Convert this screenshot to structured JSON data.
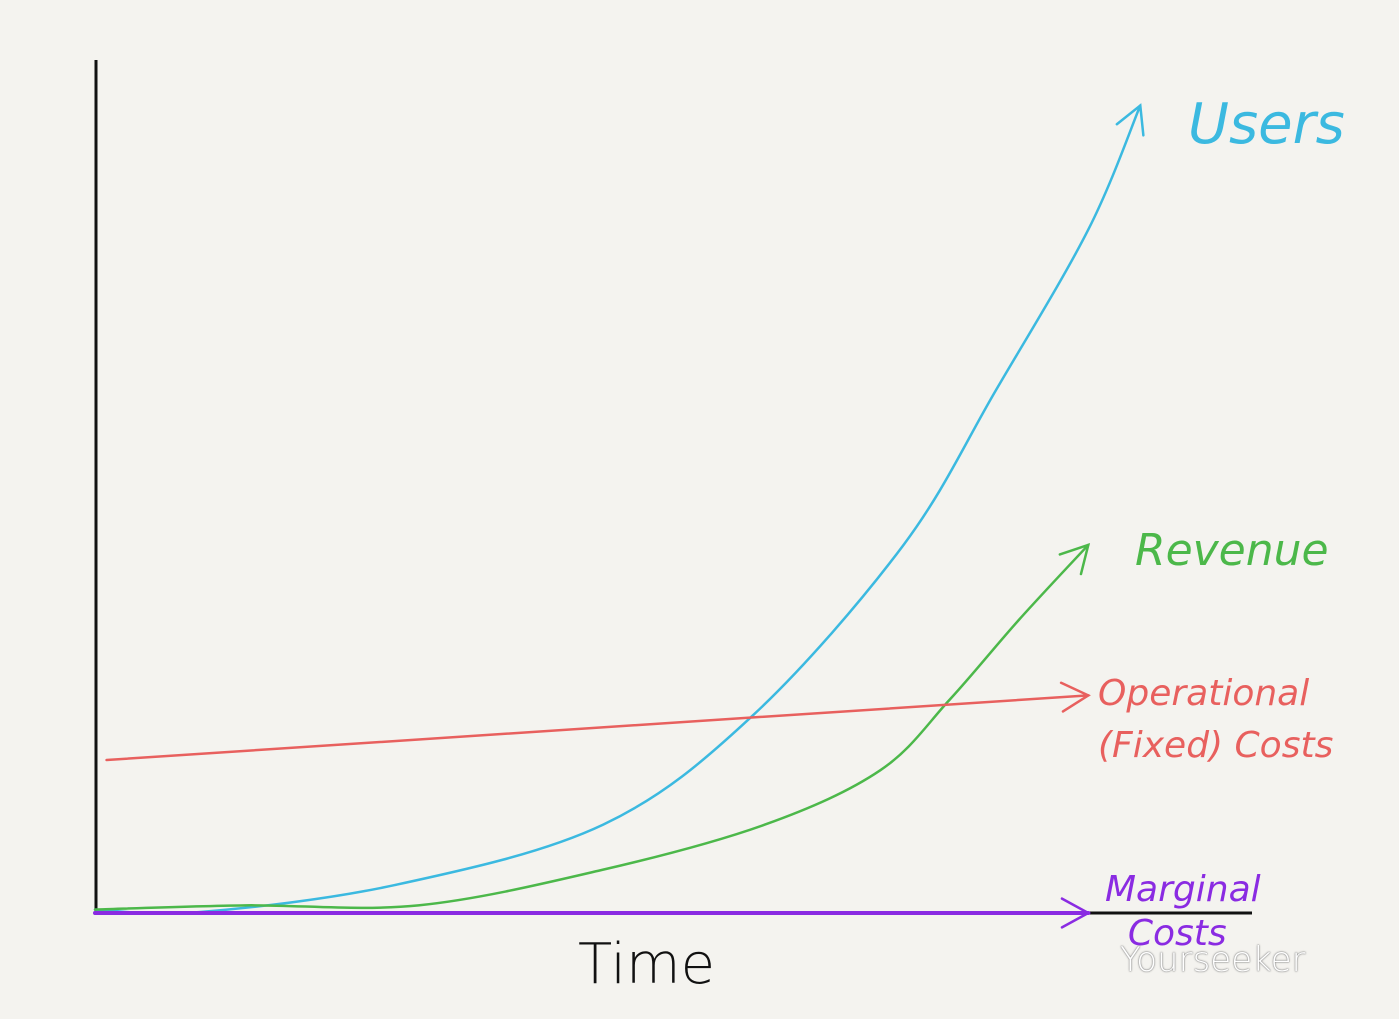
{
  "chart_data": {
    "type": "line",
    "title": "",
    "xlabel": "Time",
    "ylabel": "",
    "xlim": [
      0,
      10
    ],
    "ylim": [
      0,
      100
    ],
    "grid": false,
    "legend": "none (series labelled at line ends)",
    "series": [
      {
        "name": "Users",
        "color": "#3bb9e0",
        "x": [
          0,
          0.9,
          2.6,
          4.4,
          5.7,
          7.0,
          7.8,
          8.6,
          9.05
        ],
        "y": [
          0.4,
          0.1,
          3.3,
          10.4,
          23.3,
          43.3,
          61.5,
          80.4,
          95
        ]
      },
      {
        "name": "Revenue",
        "color": "#4cb84a",
        "x": [
          0,
          1.3,
          2.8,
          4.4,
          5.8,
          6.8,
          7.4,
          8.0,
          8.6
        ],
        "y": [
          0.4,
          0.9,
          0.9,
          5.1,
          10.4,
          16.8,
          25.1,
          34.5,
          43.3
        ]
      },
      {
        "name": "Operational (Fixed) Costs",
        "color": "#e8605e",
        "x": [
          0.1,
          8.6
        ],
        "y": [
          18,
          25.6
        ]
      },
      {
        "name": "Marginal Costs",
        "color": "#8a2be2",
        "x": [
          0,
          8.6
        ],
        "y": [
          0,
          0
        ]
      }
    ]
  },
  "labels": {
    "users": "Users",
    "revenue": "Revenue",
    "operational": "Operational\n(Fixed) Costs",
    "marginal": "Marginal\n  Costs",
    "time": "Time"
  },
  "watermark": "Yourseeker"
}
